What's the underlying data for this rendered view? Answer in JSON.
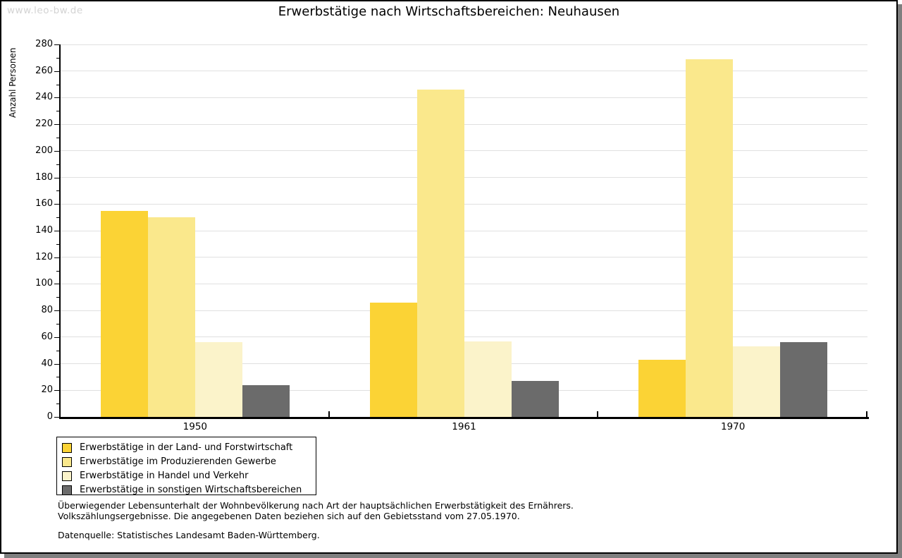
{
  "watermark": "www.leo-bw.de",
  "title": "Erwerbstätige nach Wirtschaftsbereichen: Neuhausen",
  "chart_data": {
    "type": "bar",
    "title": "Erwerbstätige nach Wirtschaftsbereichen: Neuhausen",
    "xlabel": "",
    "ylabel": "Anzahl Personen",
    "ylim": [
      0,
      280
    ],
    "y_tick_step": 20,
    "y_minor_tick_step": 10,
    "grid": true,
    "legend_position": "bottom-left",
    "categories": [
      "1950",
      "1961",
      "1970"
    ],
    "series": [
      {
        "name": "Erwerbstätige in der Land- und Forstwirtschaft",
        "color": "#fbd335",
        "values": [
          155,
          86,
          43
        ]
      },
      {
        "name": "Erwerbstätige im Produzierenden Gewerbe",
        "color": "#fae88c",
        "values": [
          150,
          246,
          269
        ]
      },
      {
        "name": "Erwerbstätige in Handel und Verkehr",
        "color": "#fbf3ca",
        "values": [
          56,
          57,
          53
        ]
      },
      {
        "name": "Erwerbstätige in sonstigen Wirtschaftsbereichen",
        "color": "#6b6b6b",
        "values": [
          24,
          27,
          56
        ]
      }
    ]
  },
  "footer": {
    "note_line1": "Überwiegender Lebensunterhalt der Wohnbevölkerung nach Art der hauptsächlichen Erwerbstätigkeit des Ernährers.",
    "note_line2": "Volkszählungsergebnisse. Die angegebenen Daten beziehen sich auf den Gebietsstand vom 27.05.1970.",
    "source": "Datenquelle: Statistisches Landesamt Baden-Württemberg."
  },
  "colors": {
    "grid": "#e0e0e0",
    "axis": "#000000",
    "watermark": "#d3d3d3",
    "shadow": "#7f7f7f",
    "background": "#ffffff"
  }
}
